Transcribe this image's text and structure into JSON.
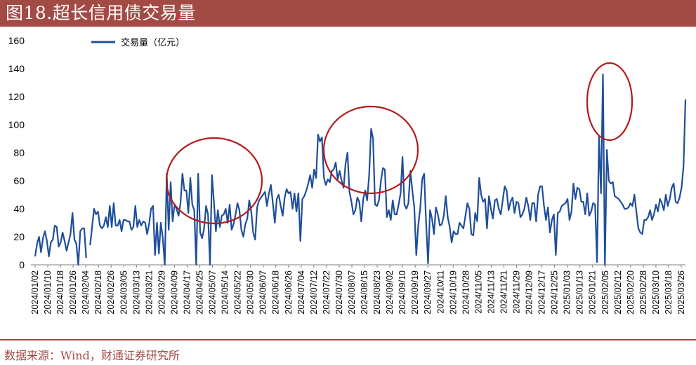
{
  "header": {
    "title": "图18.超长信用债交易量"
  },
  "footer": {
    "source": "数据来源：Wind，财通证券研究所"
  },
  "colors": {
    "accent": "#a24a44",
    "series": "#1f4e9a",
    "circle": "#b31b1b"
  },
  "chart_data": {
    "type": "line",
    "title": "图18.超长信用债交易量",
    "xlabel": "",
    "ylabel": "",
    "ylim": [
      0,
      160
    ],
    "yticks": [
      "0",
      "20",
      "40",
      "60",
      "80",
      "100",
      "120",
      "140",
      "160"
    ],
    "grid": false,
    "legend_position": "top-left",
    "x_tick_labels": [
      "2024/01/02",
      "2024/01/10",
      "2024/01/18",
      "2024/01/26",
      "2024/02/04",
      "2024/02/18",
      "2024/02/26",
      "2024/03/05",
      "2024/03/13",
      "2024/03/21",
      "2024/03/29",
      "2024/04/09",
      "2024/04/17",
      "2024/04/25",
      "2024/05/07",
      "2024/05/14",
      "2024/05/22",
      "2024/05/30",
      "2024/06/07",
      "2024/06/18",
      "2024/06/26",
      "2024/07/04",
      "2024/07/12",
      "2024/07/22",
      "2024/07/30",
      "2024/08/07",
      "2024/08/15",
      "2024/08/23",
      "2024/09/02",
      "2024/09/10",
      "2024/09/19",
      "2024/09/27",
      "2024/10/11",
      "2024/10/19",
      "2024/10/28",
      "2024/11/05",
      "2024/11/13",
      "2024/11/21",
      "2024/11/29",
      "2024/12/09",
      "2024/12/17",
      "2024/12/25",
      "2025/01/03",
      "2025/01/13",
      "2025/01/21",
      "2025/02/05",
      "2025/02/12",
      "2025/02/20",
      "2025/02/28",
      "2025/03/10",
      "2025/03/18",
      "2025/03/26"
    ],
    "series": [
      {
        "name": "交易量（亿元）",
        "values": [
          6,
          15,
          20,
          9,
          19,
          24,
          17,
          6,
          16,
          18,
          28,
          27,
          13,
          16,
          23,
          17,
          10,
          16,
          22,
          37,
          18,
          15,
          0,
          24,
          26,
          26,
          5,
          null,
          14,
          27,
          40,
          36,
          38,
          28,
          26,
          28,
          34,
          27,
          42,
          27,
          44,
          28,
          28,
          32,
          24,
          32,
          32,
          31,
          31,
          25,
          27,
          42,
          27,
          32,
          28,
          31,
          30,
          22,
          29,
          40,
          42,
          7,
          30,
          8,
          30,
          19,
          0,
          65,
          25,
          59,
          31,
          43,
          40,
          35,
          44,
          65,
          53,
          53,
          37,
          62,
          43,
          39,
          0,
          65,
          23,
          19,
          26,
          42,
          36,
          0,
          64,
          45,
          24,
          39,
          27,
          35,
          36,
          40,
          30,
          43,
          25,
          29,
          36,
          44,
          39,
          25,
          20,
          29,
          33,
          46,
          38,
          23,
          18,
          41,
          46,
          48,
          50,
          52,
          42,
          51,
          57,
          44,
          30,
          47,
          50,
          42,
          35,
          48,
          54,
          51,
          52,
          40,
          51,
          38,
          51,
          17,
          47,
          49,
          53,
          58,
          64,
          55,
          68,
          62,
          93,
          88,
          91,
          62,
          57,
          61,
          59,
          67,
          68,
          73,
          61,
          67,
          60,
          55,
          72,
          80,
          52,
          45,
          36,
          39,
          48,
          45,
          31,
          47,
          53,
          46,
          64,
          97,
          90,
          43,
          42,
          46,
          60,
          69,
          68,
          34,
          39,
          32,
          46,
          36,
          36,
          43,
          51,
          77,
          43,
          40,
          44,
          67,
          53,
          41,
          7,
          28,
          40,
          61,
          65,
          30,
          1,
          39,
          33,
          22,
          41,
          36,
          28,
          29,
          35,
          49,
          34,
          27,
          16,
          24,
          22,
          22,
          30,
          28,
          26,
          35,
          44,
          40,
          22,
          21,
          37,
          31,
          62,
          50,
          45,
          47,
          26,
          49,
          40,
          33,
          46,
          47,
          40,
          36,
          46,
          56,
          53,
          39,
          45,
          48,
          37,
          45,
          44,
          34,
          36,
          40,
          48,
          42,
          32,
          44,
          44,
          31,
          50,
          56,
          56,
          42,
          32,
          41,
          23,
          32,
          36,
          7,
          37,
          38,
          42,
          43,
          44,
          47,
          32,
          38,
          58,
          47,
          55,
          54,
          45,
          45,
          36,
          51,
          35,
          38,
          44,
          43,
          2,
          92,
          51,
          136,
          0,
          82,
          60,
          58,
          59,
          49,
          48,
          47,
          45,
          43,
          40,
          40,
          41,
          44,
          42,
          50,
          38,
          26,
          23,
          22,
          32,
          32,
          34,
          39,
          32,
          36,
          43,
          38,
          47,
          44,
          39,
          50,
          42,
          47,
          55,
          58,
          45,
          44,
          48,
          55,
          70,
          118
        ]
      }
    ],
    "annotations": [
      "ellipse-apr-may-2024",
      "ellipse-jul-sep-2024",
      "ellipse-feb-2025"
    ]
  }
}
